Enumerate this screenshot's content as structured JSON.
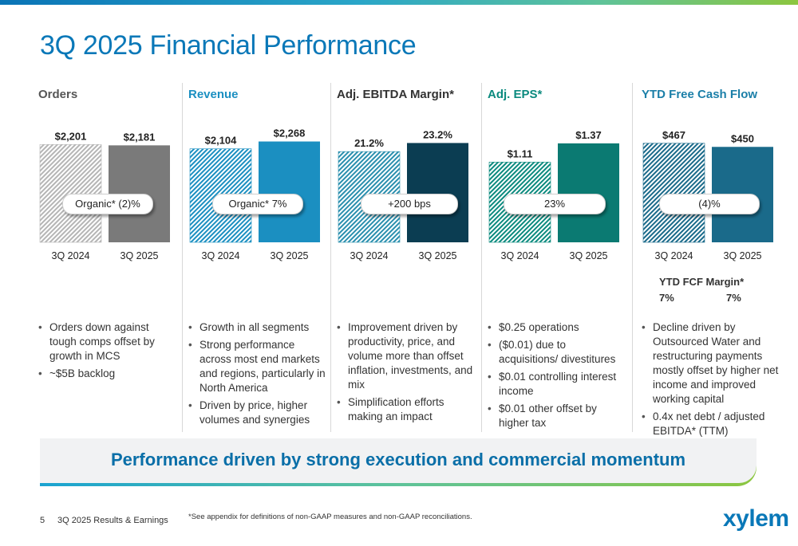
{
  "title": "3Q 2025 Financial Performance",
  "chart_data": [
    {
      "type": "bar",
      "title": "Orders",
      "title_color": "#555555",
      "categories": [
        "3Q 2024",
        "3Q 2025"
      ],
      "values": [
        2201,
        2181
      ],
      "value_labels": [
        "$2,201",
        "$2,181"
      ],
      "ylim": [
        0,
        2600
      ],
      "fill_pattern": "#b5b5b5",
      "fill_solid": "#7a7a7a",
      "badge": "Organic* (2)%"
    },
    {
      "type": "bar",
      "title": "Revenue",
      "title_color": "#1b8fc1",
      "categories": [
        "3Q 2024",
        "3Q 2025"
      ],
      "values": [
        2104,
        2268
      ],
      "value_labels": [
        "$2,104",
        "$2,268"
      ],
      "ylim": [
        0,
        2600
      ],
      "fill_pattern": "#1b8fc1",
      "fill_solid": "#1b8fc1",
      "badge": "Organic* 7%"
    },
    {
      "type": "bar",
      "title": "Adj. EBITDA Margin*",
      "title_color": "#333333",
      "categories": [
        "3Q 2024",
        "3Q 2025"
      ],
      "values": [
        21.2,
        23.2
      ],
      "value_labels": [
        "21.2%",
        "23.2%"
      ],
      "ylim": [
        0,
        27
      ],
      "fill_pattern": "#2a8fae",
      "fill_solid": "#0b3d52",
      "badge": "+200 bps"
    },
    {
      "type": "bar",
      "title": "Adj. EPS*",
      "title_color": "#0b8a7e",
      "categories": [
        "3Q 2024",
        "3Q 2025"
      ],
      "values": [
        1.11,
        1.37
      ],
      "value_labels": [
        "$1.11",
        "$1.37"
      ],
      "ylim": [
        0,
        1.6
      ],
      "fill_pattern": "#0b8a7e",
      "fill_solid": "#0b7a72",
      "badge": "23%"
    },
    {
      "type": "bar",
      "title": "YTD Free Cash Flow",
      "title_color": "#1b7fa8",
      "categories": [
        "3Q 2024",
        "3Q 2025"
      ],
      "values": [
        467,
        450
      ],
      "value_labels": [
        "$467",
        "$450"
      ],
      "ylim": [
        0,
        545
      ],
      "fill_pattern": "#1a6a8a",
      "fill_solid": "#1a6a8a",
      "badge": "(4)%"
    }
  ],
  "fcf_margin": {
    "label": "YTD FCF Margin*",
    "values": [
      "7%",
      "7%"
    ]
  },
  "bullets": [
    [
      "Orders down against tough comps offset by growth in MCS",
      "~$5B backlog"
    ],
    [
      "Growth in all segments",
      "Strong performance across most end markets and regions, particularly in North America",
      "Driven by price, higher volumes and synergies"
    ],
    [
      "Improvement driven by productivity, price, and volume more than offset inflation, investments, and mix",
      "Simplification efforts making an impact"
    ],
    [
      "$0.25 operations",
      "($0.01) due to acquisitions/ divestitures",
      "$0.01 controlling interest income",
      "$0.01 other offset by higher tax"
    ],
    [
      "Decline driven by Outsourced Water and restructuring payments mostly offset by higher net income and improved working capital",
      "0.4x net debt / adjusted EBITDA* (TTM)"
    ]
  ],
  "banner": "Performance driven by strong execution and commercial momentum",
  "footer": {
    "page_number": "5",
    "deck_title": "3Q 2025 Results & Earnings",
    "footnote": "*See appendix for definitions of non-GAAP measures and non-GAAP reconciliations.",
    "logo": "xylem"
  }
}
